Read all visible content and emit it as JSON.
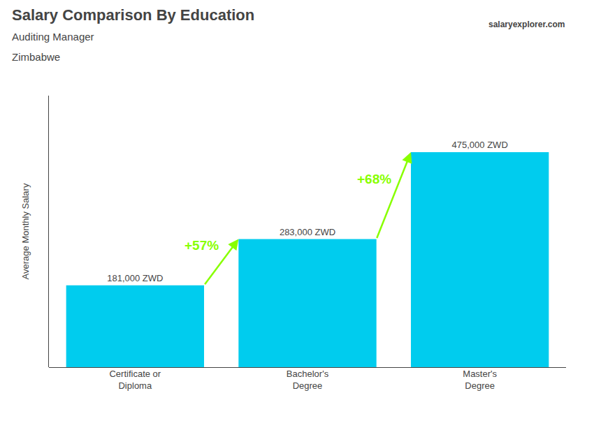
{
  "chart_data": {
    "type": "bar",
    "title": "Salary Comparison By Education",
    "subtitle": [
      "Auditing Manager",
      "Zimbabwe"
    ],
    "ylabel": "Average Monthly Salary",
    "categories": [
      "Certificate or\nDiploma",
      "Bachelor's\nDegree",
      "Master's\nDegree"
    ],
    "values": [
      181000,
      283000,
      475000
    ],
    "value_labels": [
      "181,000 ZWD",
      "283,000 ZWD",
      "475,000 ZWD"
    ],
    "data_labels": true,
    "color": "#00ccee",
    "annotations": [
      {
        "text": "+57%",
        "color": "#88ff00"
      },
      {
        "text": "+68%",
        "color": "#88ff00"
      },
      {
        "text": "salaryexplorer.com"
      }
    ],
    "ylim": [
      0,
      600000
    ],
    "yticks": [],
    "tick_labels": "x",
    "grid": false
  }
}
